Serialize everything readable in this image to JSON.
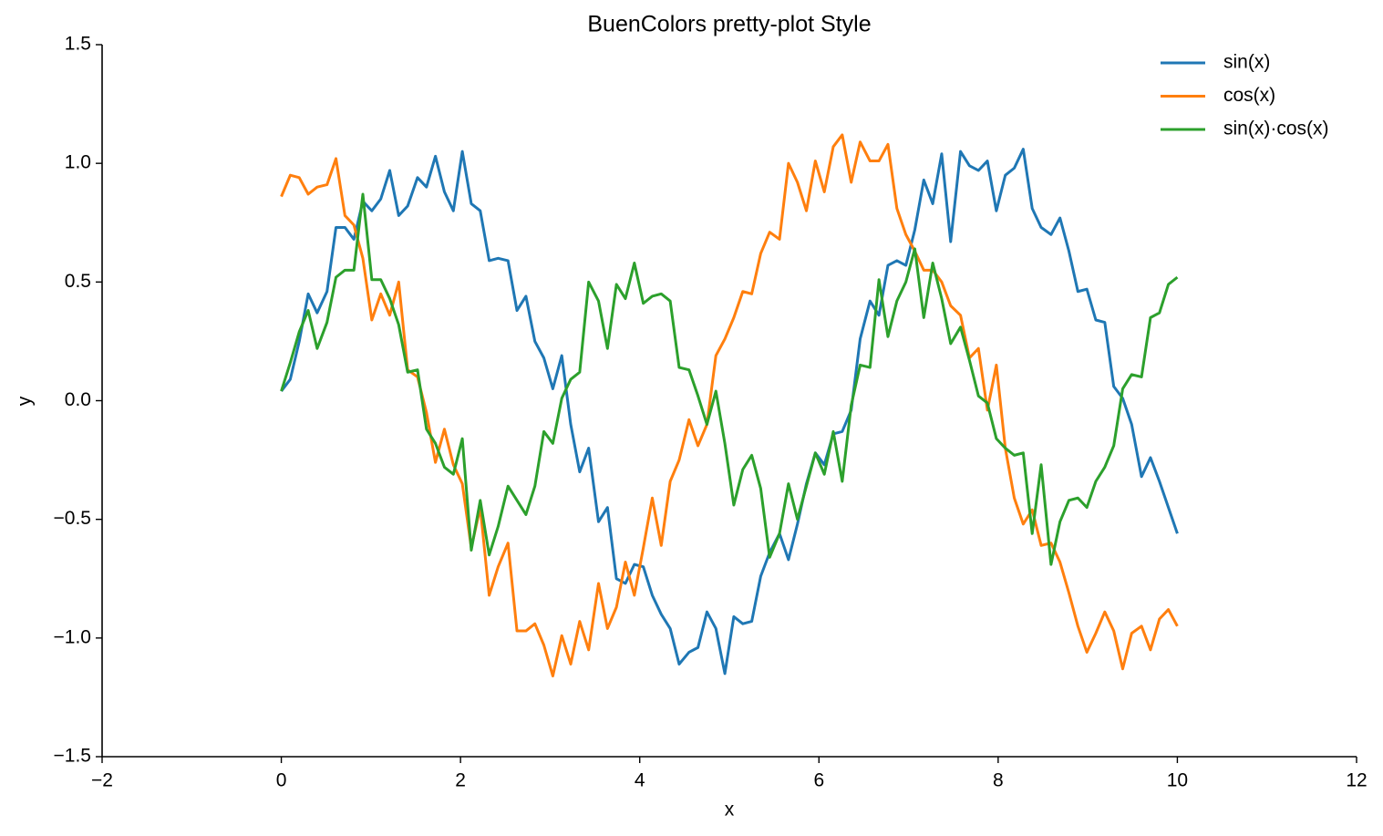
{
  "chart_data": {
    "type": "line",
    "title": "BuenColors pretty-plot Style",
    "x_label": "x",
    "y_label": "y",
    "x": [
      0,
      0.1,
      0.2,
      0.3,
      0.4,
      0.51,
      0.61,
      0.71,
      0.81,
      0.91,
      1.01,
      1.11,
      1.21,
      1.31,
      1.41,
      1.52,
      1.62,
      1.72,
      1.82,
      1.92,
      2.02,
      2.12,
      2.22,
      2.32,
      2.42,
      2.53,
      2.63,
      2.73,
      2.83,
      2.93,
      3.03,
      3.13,
      3.23,
      3.33,
      3.43,
      3.54,
      3.64,
      3.74,
      3.84,
      3.94,
      4.04,
      4.14,
      4.24,
      4.34,
      4.44,
      4.55,
      4.65,
      4.75,
      4.85,
      4.95,
      5.05,
      5.15,
      5.25,
      5.35,
      5.45,
      5.56,
      5.66,
      5.76,
      5.86,
      5.96,
      6.06,
      6.16,
      6.26,
      6.36,
      6.46,
      6.57,
      6.67,
      6.77,
      6.87,
      6.97,
      7.07,
      7.17,
      7.27,
      7.37,
      7.47,
      7.58,
      7.68,
      7.78,
      7.88,
      7.98,
      8.08,
      8.18,
      8.28,
      8.38,
      8.48,
      8.59,
      8.69,
      8.79,
      8.89,
      8.99,
      9.09,
      9.19,
      9.29,
      9.39,
      9.49,
      9.6,
      9.7,
      9.8,
      9.9,
      10
    ],
    "series": [
      {
        "name": "sin(x)",
        "color": "#1f77b4",
        "values": [
          0.04,
          0.09,
          0.25,
          0.45,
          0.37,
          0.46,
          0.73,
          0.73,
          0.68,
          0.84,
          0.8,
          0.85,
          0.97,
          0.78,
          0.82,
          0.94,
          0.9,
          1.03,
          0.88,
          0.8,
          1.05,
          0.83,
          0.8,
          0.59,
          0.6,
          0.59,
          0.38,
          0.44,
          0.25,
          0.18,
          0.05,
          0.19,
          -0.1,
          -0.3,
          -0.2,
          -0.51,
          -0.45,
          -0.75,
          -0.77,
          -0.69,
          -0.7,
          -0.82,
          -0.9,
          -0.96,
          -1.11,
          -1.06,
          -1.04,
          -0.89,
          -0.96,
          -1.15,
          -0.91,
          -0.94,
          -0.93,
          -0.74,
          -0.64,
          -0.56,
          -0.67,
          -0.52,
          -0.35,
          -0.22,
          -0.27,
          -0.14,
          -0.13,
          -0.04,
          0.26,
          0.42,
          0.36,
          0.57,
          0.59,
          0.57,
          0.72,
          0.93,
          0.83,
          1.04,
          0.67,
          1.05,
          0.99,
          0.97,
          1.01,
          0.8,
          0.95,
          0.98,
          1.06,
          0.81,
          0.73,
          0.7,
          0.77,
          0.63,
          0.46,
          0.47,
          0.34,
          0.33,
          0.06,
          0.01,
          -0.1,
          -0.32,
          -0.24,
          -0.34,
          -0.45,
          -0.56
        ]
      },
      {
        "name": "cos(x)",
        "color": "#ff7f0e",
        "values": [
          0.86,
          0.95,
          0.94,
          0.87,
          0.9,
          0.91,
          1.02,
          0.78,
          0.74,
          0.6,
          0.34,
          0.45,
          0.36,
          0.5,
          0.13,
          0.1,
          -0.05,
          -0.26,
          -0.12,
          -0.27,
          -0.35,
          -0.62,
          -0.45,
          -0.82,
          -0.7,
          -0.6,
          -0.97,
          -0.97,
          -0.94,
          -1.03,
          -1.16,
          -0.99,
          -1.11,
          -0.93,
          -1.05,
          -0.77,
          -0.96,
          -0.87,
          -0.68,
          -0.82,
          -0.62,
          -0.41,
          -0.61,
          -0.34,
          -0.25,
          -0.08,
          -0.19,
          -0.1,
          0.19,
          0.26,
          0.35,
          0.46,
          0.45,
          0.62,
          0.71,
          0.68,
          1.0,
          0.92,
          0.8,
          1.01,
          0.88,
          1.07,
          1.12,
          0.92,
          1.09,
          1.01,
          1.01,
          1.08,
          0.81,
          0.7,
          0.63,
          0.55,
          0.55,
          0.5,
          0.4,
          0.36,
          0.18,
          0.22,
          -0.04,
          0.15,
          -0.2,
          -0.41,
          -0.52,
          -0.46,
          -0.61,
          -0.6,
          -0.68,
          -0.81,
          -0.95,
          -1.06,
          -0.98,
          -0.89,
          -0.97,
          -1.13,
          -0.98,
          -0.95,
          -1.05,
          -0.92,
          -0.88,
          -0.95
        ]
      },
      {
        "name": "sin(x)·cos(x)",
        "color": "#2ca02c",
        "values": [
          0.04,
          0.16,
          0.29,
          0.38,
          0.22,
          0.33,
          0.52,
          0.55,
          0.55,
          0.87,
          0.51,
          0.51,
          0.43,
          0.32,
          0.12,
          0.13,
          -0.12,
          -0.18,
          -0.28,
          -0.31,
          -0.16,
          -0.63,
          -0.42,
          -0.65,
          -0.53,
          -0.36,
          -0.42,
          -0.48,
          -0.36,
          -0.13,
          -0.18,
          0.01,
          0.09,
          0.12,
          0.5,
          0.42,
          0.22,
          0.49,
          0.43,
          0.58,
          0.41,
          0.44,
          0.45,
          0.42,
          0.14,
          0.13,
          0.02,
          -0.1,
          0.04,
          -0.18,
          -0.44,
          -0.29,
          -0.23,
          -0.37,
          -0.66,
          -0.56,
          -0.35,
          -0.5,
          -0.36,
          -0.22,
          -0.31,
          -0.13,
          -0.34,
          -0.02,
          0.15,
          0.14,
          0.51,
          0.27,
          0.42,
          0.5,
          0.64,
          0.35,
          0.58,
          0.43,
          0.24,
          0.31,
          0.17,
          0.02,
          -0.01,
          -0.16,
          -0.2,
          -0.23,
          -0.22,
          -0.56,
          -0.27,
          -0.69,
          -0.51,
          -0.42,
          -0.41,
          -0.45,
          -0.34,
          -0.28,
          -0.19,
          0.05,
          0.11,
          0.1,
          0.35,
          0.37,
          0.49,
          0.52
        ]
      }
    ],
    "xlim": [
      -2,
      12
    ],
    "xticks": [
      {
        "value": -2,
        "label": "−2"
      },
      0,
      2,
      4,
      6,
      8,
      10,
      12
    ],
    "ylim": [
      -1.5,
      1.5
    ],
    "yticks": [
      {
        "value": -1.5,
        "label": "−1.5"
      },
      {
        "value": -1,
        "label": "−1.0"
      },
      {
        "value": -0.5,
        "label": "−0.5"
      },
      {
        "value": 0,
        "label": "0.0"
      },
      0.5,
      {
        "value": 1,
        "label": "1.0"
      },
      1.5
    ],
    "grid": false,
    "legend": "upper right"
  }
}
